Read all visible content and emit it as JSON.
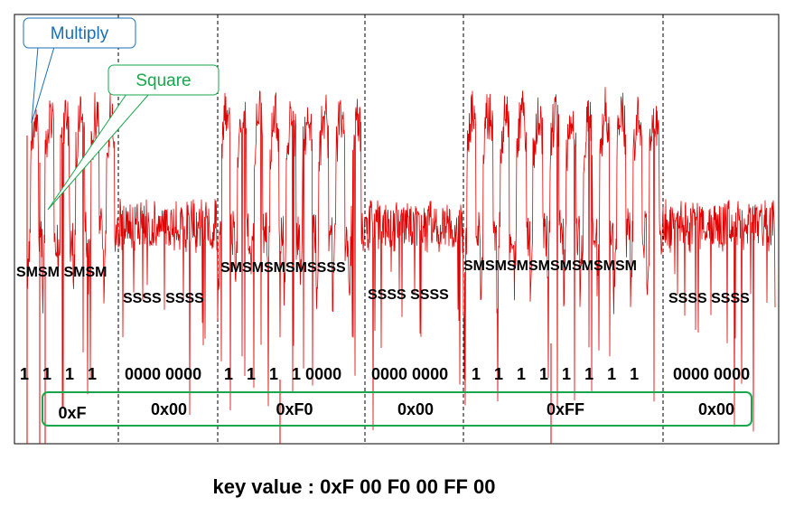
{
  "colors": {
    "trace": "#e00000",
    "multiply": "#1b6fb5",
    "square": "#1aa64a",
    "hex_box": "#1aa64a",
    "frame": "#000000"
  },
  "callouts": {
    "multiply": "Multiply",
    "square": "Square"
  },
  "op_labels": [
    {
      "id": "op-1",
      "text": "SMSM SMSM",
      "mode": "high"
    },
    {
      "id": "op-2",
      "text": "SSSS SSSS",
      "mode": "low"
    },
    {
      "id": "op-3",
      "text": "SMSMSMSMSSSS",
      "mode": "high"
    },
    {
      "id": "op-4",
      "text": "SSSS SSSS",
      "mode": "low"
    },
    {
      "id": "op-5",
      "text": "SMSMSMSMSMSMSMSM",
      "mode": "high"
    },
    {
      "id": "op-6",
      "text": "SSSS SSSS",
      "mode": "low"
    }
  ],
  "bit_labels": [
    "1   1   1   1",
    "0000 0000",
    "1   1   1   1 0000",
    "0000 0000",
    "1   1   1   1   1   1   1   1",
    "0000 0000"
  ],
  "hex_labels": [
    "0xF",
    "0x00",
    "0xF0",
    "0x00",
    "0xFF",
    "0x00"
  ],
  "caption": "key value : 0xF 00 F0 00 FF 00"
}
